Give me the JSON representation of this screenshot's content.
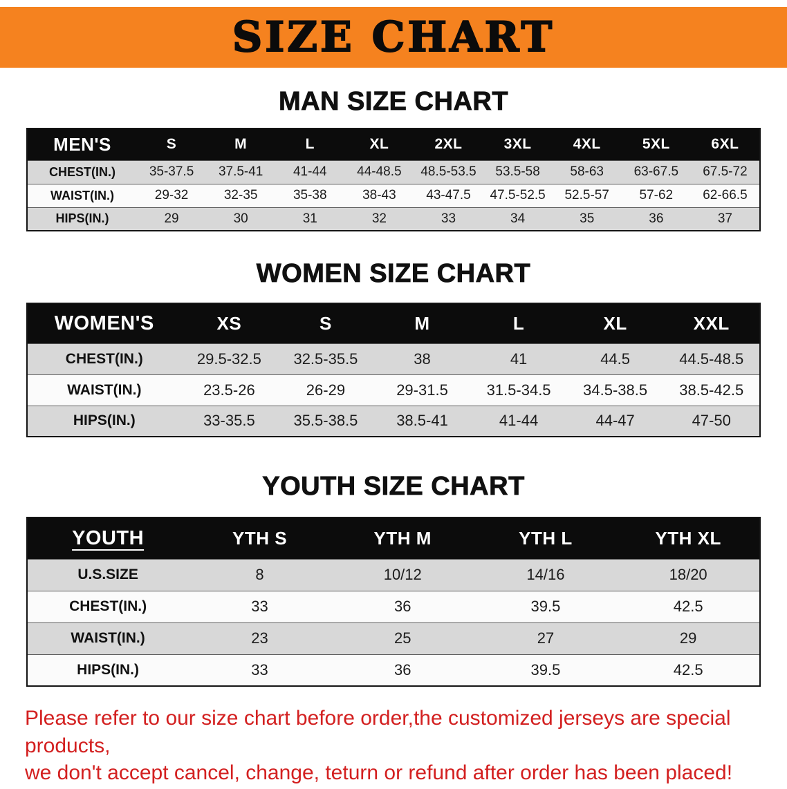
{
  "banner": {
    "title": "SIZE CHART"
  },
  "colors": {
    "banner_bg": "#f5821f",
    "header_bar_bg": "#0c0c0c",
    "header_bar_text": "#ffffff",
    "stripe_gray": "#d8d8d8",
    "stripe_white": "#fbfbfb",
    "footer_text": "#d32020"
  },
  "sections": [
    {
      "id": "men",
      "heading": "MAN SIZE CHART",
      "header": [
        "MEN'S",
        "S",
        "M",
        "L",
        "XL",
        "2XL",
        "3XL",
        "4XL",
        "5XL",
        "6XL"
      ],
      "rows": [
        [
          "CHEST(IN.)",
          "35-37.5",
          "37.5-41",
          "41-44",
          "44-48.5",
          "48.5-53.5",
          "53.5-58",
          "58-63",
          "63-67.5",
          "67.5-72"
        ],
        [
          "WAIST(IN.)",
          "29-32",
          "32-35",
          "35-38",
          "38-43",
          "43-47.5",
          "47.5-52.5",
          "52.5-57",
          "57-62",
          "62-66.5"
        ],
        [
          "HIPS(IN.)",
          "29",
          "30",
          "31",
          "32",
          "33",
          "34",
          "35",
          "36",
          "37"
        ]
      ]
    },
    {
      "id": "women",
      "heading": "WOMEN SIZE CHART",
      "header": [
        "WOMEN'S",
        "XS",
        "S",
        "M",
        "L",
        "XL",
        "XXL"
      ],
      "rows": [
        [
          "CHEST(IN.)",
          "29.5-32.5",
          "32.5-35.5",
          "38",
          "41",
          "44.5",
          "44.5-48.5"
        ],
        [
          "WAIST(IN.)",
          "23.5-26",
          "26-29",
          "29-31.5",
          "31.5-34.5",
          "34.5-38.5",
          "38.5-42.5"
        ],
        [
          "HIPS(IN.)",
          "33-35.5",
          "35.5-38.5",
          "38.5-41",
          "41-44",
          "44-47",
          "47-50"
        ]
      ]
    },
    {
      "id": "youth",
      "heading": "YOUTH SIZE CHART",
      "header": [
        "YOUTH",
        "YTH S",
        "YTH M",
        "YTH L",
        "YTH XL"
      ],
      "rows": [
        [
          "U.S.SIZE",
          "8",
          "10/12",
          "14/16",
          "18/20"
        ],
        [
          "CHEST(IN.)",
          "33",
          "36",
          "39.5",
          "42.5"
        ],
        [
          "WAIST(IN.)",
          "23",
          "25",
          "27",
          "29"
        ],
        [
          "HIPS(IN.)",
          "33",
          "36",
          "39.5",
          "42.5"
        ]
      ]
    }
  ],
  "footer": {
    "line1": "Please refer to our size chart before order,the customized jerseys are special products,",
    "line2": "we don't accept cancel, change, teturn or refund after order has been placed!"
  }
}
